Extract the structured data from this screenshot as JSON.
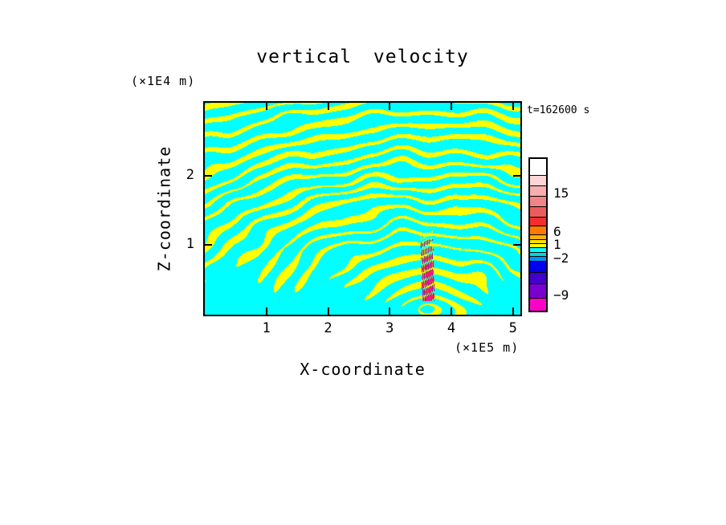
{
  "chart_data": {
    "type": "heatmap",
    "title": "vertical velocity",
    "timestamp": "t=162600 s",
    "xlabel": "X-coordinate",
    "x_unit": "(×1E5 m)",
    "ylabel": "Z-coordinate",
    "y_unit": "(×1E4 m)",
    "xlim": [
      0,
      5.12
    ],
    "ylim": [
      0,
      3.05
    ],
    "x_ticks": [
      1,
      2,
      3,
      4,
      5
    ],
    "y_ticks": [
      1,
      2
    ],
    "legend_position": "right",
    "grid": false,
    "colorbar": {
      "labels": [
        {
          "text": "15",
          "pos": 0.243
        },
        {
          "text": "6",
          "pos": 0.497
        },
        {
          "text": "1",
          "pos": 0.582
        },
        {
          "text": "−2",
          "pos": 0.672
        },
        {
          "text": "−9",
          "pos": 0.915
        }
      ],
      "segments": [
        {
          "color": "#ffffff",
          "h": 20
        },
        {
          "color": "#fcd6d6",
          "h": 13
        },
        {
          "color": "#f7aeae",
          "h": 13
        },
        {
          "color": "#f18585",
          "h": 13
        },
        {
          "color": "#ec5c5c",
          "h": 13
        },
        {
          "color": "#f42e2e",
          "h": 11
        },
        {
          "color": "#ff7a00",
          "h": 11
        },
        {
          "color": "#ffb000",
          "h": 6
        },
        {
          "color": "#ffdf00",
          "h": 5
        },
        {
          "color": "#ffff00",
          "h": 5
        },
        {
          "color": "#00ffff",
          "h": 6
        },
        {
          "color": "#00d8d8",
          "h": 5
        },
        {
          "color": "#0090ff",
          "h": 6
        },
        {
          "color": "#0000ee",
          "h": 14
        },
        {
          "color": "#4400cc",
          "h": 14
        },
        {
          "color": "#7a00d0",
          "h": 18
        },
        {
          "color": "#ff00c8",
          "h": 16
        }
      ]
    },
    "field": {
      "description": "Filled-contour vertical velocity field: alternating cyan (weakly negative) and yellow (weakly positive) gravity-wave stripes fanning outward from a convective source near x=3.6E5 m, with a narrow intense core below z=1.3E4 m containing red/orange updraft streaks (>6) and blue/purple/magenta downdraft streaks (below −2 to −9).",
      "colors": {
        "positive": "#ffff00",
        "negative": "#00ffff",
        "strong_up": "#f42e2e",
        "moderate_up": "#ff7a00",
        "strong_down": "#2a00cc",
        "very_strong_down": "#7a00d0",
        "extreme_down": "#ff00c8"
      },
      "source_x": 3.62,
      "source_z": 0.1,
      "wavelength": 0.36,
      "aniso_z": 2.1,
      "threshold": 0.55,
      "core_halfwidth": 0.1,
      "core_top": 1.3
    }
  }
}
